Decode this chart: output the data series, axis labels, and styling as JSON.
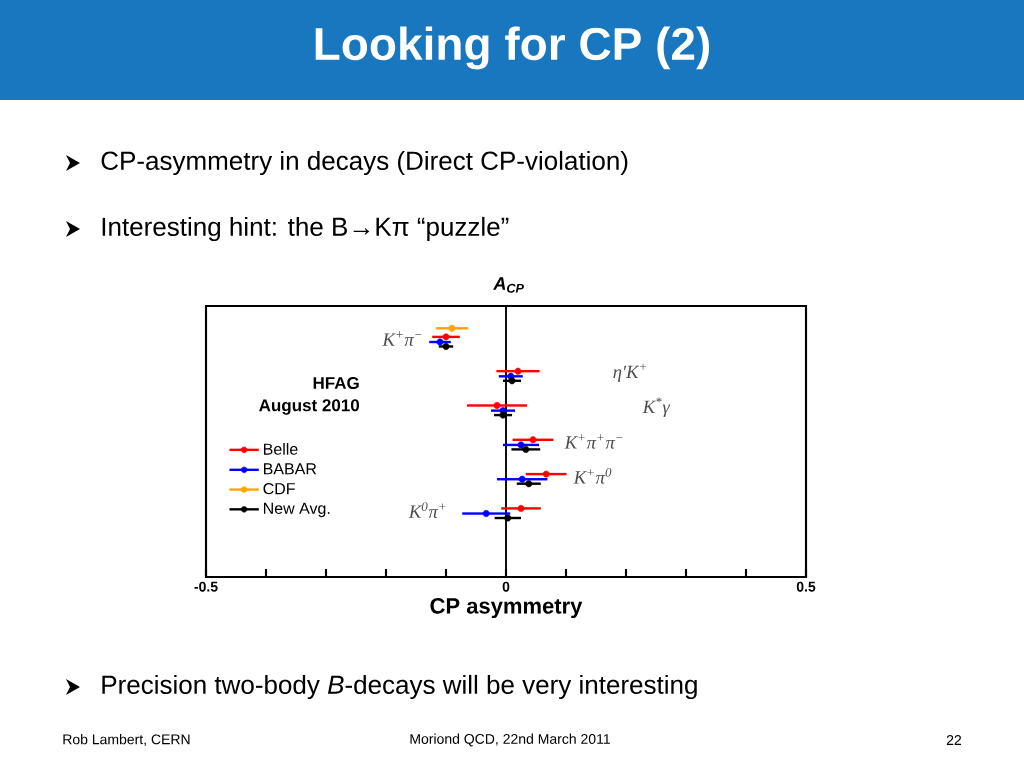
{
  "chart_data": {
    "type": "scatter",
    "orientation": "horizontal",
    "title": "Looking for CP (2)",
    "xlabel": "CP asymmetry",
    "categories": [
      "K$^{+}$π$^{−}$",
      "η′K$^{+}$",
      "K$^{*}$γ",
      "K$^{+}$π$^{+}$π$^{−}$",
      "K$^{+}$π$^{0}$",
      "K$^{0}$π$^{+}$"
    ],
    "series": [
      {
        "name": "Belle",
        "color": "#ff0000",
        "values": [
          -0.1,
          0.02,
          -0.015,
          0.045,
          0.067,
          0.025
        ],
        "errors": [
          0.023,
          0.036,
          0.05,
          0.034,
          0.034,
          0.033
        ]
      },
      {
        "name": "BABAR",
        "color": "#0000ff",
        "values": [
          -0.11,
          0.008,
          -0.005,
          0.025,
          0.027,
          -0.033
        ],
        "errors": [
          0.018,
          0.02,
          0.02,
          0.03,
          0.042,
          0.04
        ]
      },
      {
        "name": "CDF",
        "color": "#ffa500",
        "values": [
          -0.09,
          null,
          null,
          null,
          null,
          null
        ],
        "errors": [
          0.027,
          null,
          null,
          null,
          null,
          null
        ]
      },
      {
        "name": "New Avg.",
        "color": "#000000",
        "values": [
          -0.1,
          0.01,
          -0.005,
          0.033,
          0.038,
          0.003
        ],
        "errors": [
          0.012,
          0.015,
          0.015,
          0.024,
          0.02,
          0.022
        ]
      }
    ],
    "xlim": [
      -0.5,
      0.5
    ],
    "xticks": [
      -0.5,
      0,
      0.5
    ],
    "ref_lines": [
      {
        "axis": "x",
        "value": 0
      }
    ],
    "tick_labels": "x",
    "legend": "left",
    "marker": "circle",
    "line_style": "solid",
    "annotations": [
      "CP-asymmetry in decays (Direct CP-violation)",
      "Interesting hint: the B→Kπ “puzzle”",
      "A$_{CP}$",
      "HFAG",
      "August 2010",
      "Precision two-body *B*-decays will be very interesting",
      "Rob Lambert, CERN",
      "Moriond QCD, 22nd March 2011",
      "22"
    ]
  }
}
